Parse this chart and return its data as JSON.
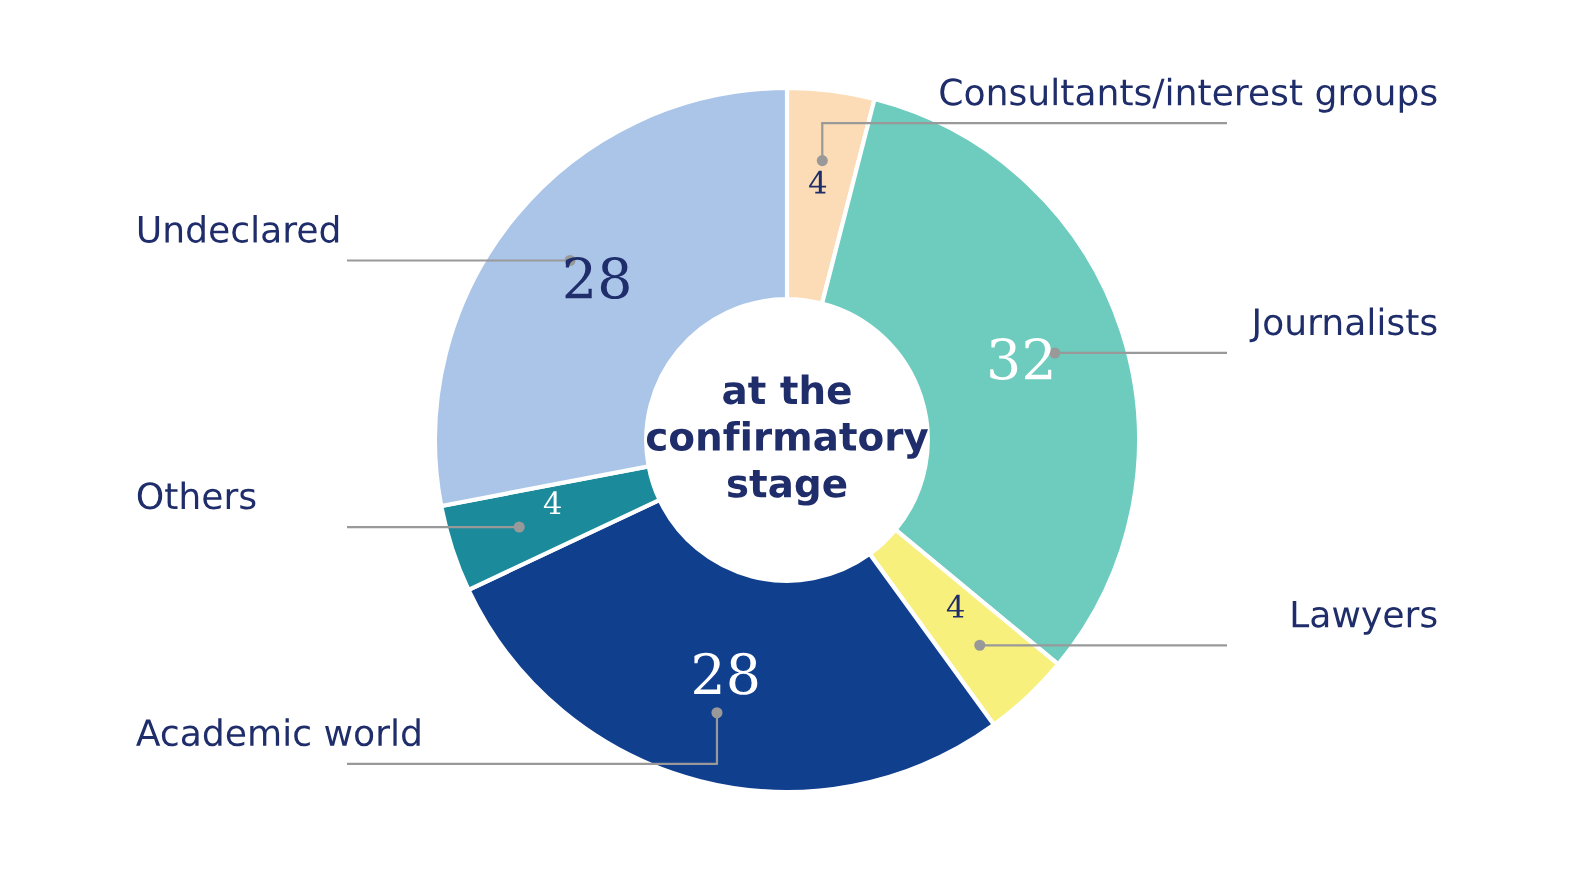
{
  "chart_data": {
    "type": "donut",
    "categories": [
      "Consultants/interest groups",
      "Journalists",
      "Lawyers",
      "Academic world",
      "Others",
      "Undeclared"
    ],
    "values": [
      4,
      32,
      4,
      28,
      4,
      28
    ],
    "colors": [
      "#fcdcb6",
      "#6dccbe",
      "#f8f07c",
      "#103f8e",
      "#1b8b9b",
      "#aac5e8"
    ],
    "data_labels": true,
    "annotations": [
      "at the confirmatory stage"
    ]
  }
}
